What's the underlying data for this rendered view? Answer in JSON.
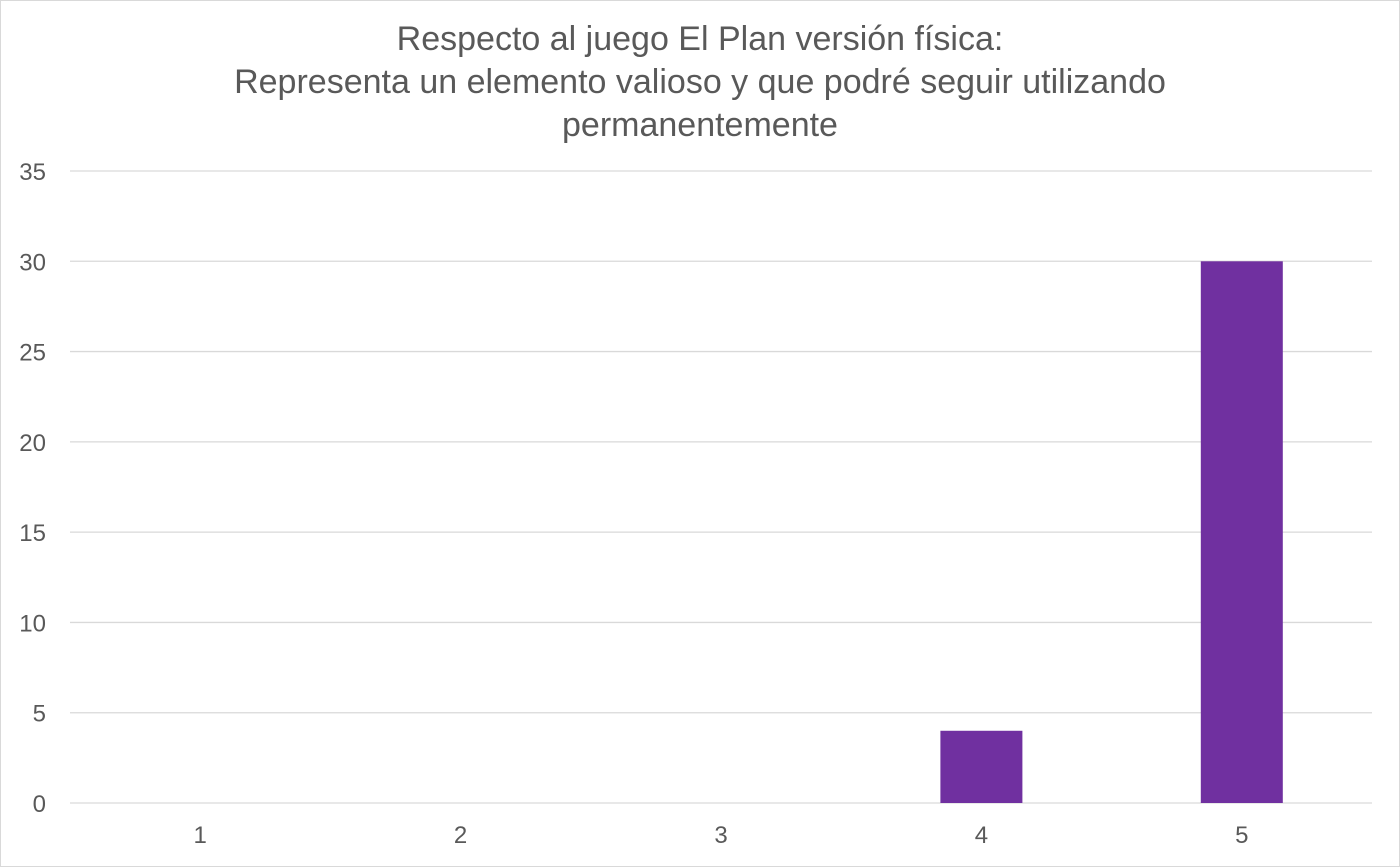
{
  "chart_data": {
    "type": "bar",
    "title_lines": [
      "Respecto al juego El Plan versión física:",
      "Representa un elemento valioso y que podré seguir utilizando",
      "permanentemente"
    ],
    "xlabel": "",
    "ylabel": "",
    "categories": [
      "1",
      "2",
      "3",
      "4",
      "5"
    ],
    "values": [
      0,
      0,
      0,
      4,
      30
    ],
    "ylim": [
      0,
      35
    ],
    "y_ticks": [
      0,
      5,
      10,
      15,
      20,
      25,
      30,
      35
    ],
    "grid": true,
    "legend": "none",
    "bar_color": "#7030a0",
    "gridline_color": "#d9d9d9",
    "text_color": "#595959"
  }
}
